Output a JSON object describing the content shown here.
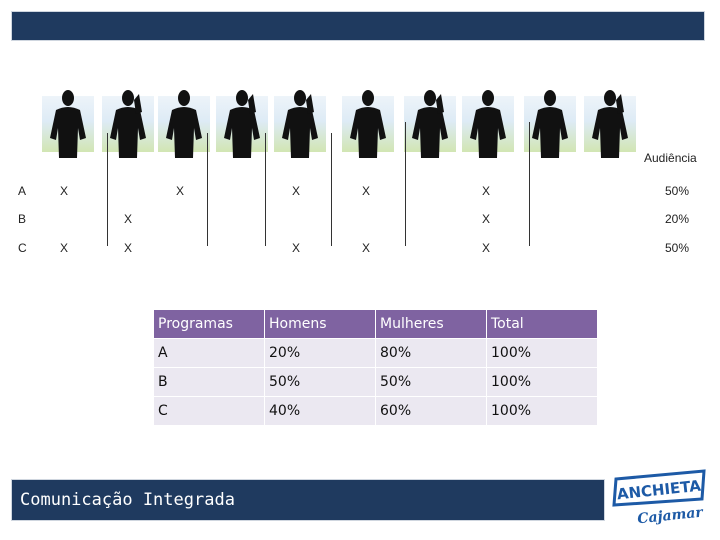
{
  "header": {
    "bar": ""
  },
  "audience_label": "Audiência",
  "rows": [
    {
      "label": "A",
      "marks": [
        "X",
        "X",
        "X",
        "X",
        "X"
      ],
      "pct": "50%"
    },
    {
      "label": "B",
      "marks": [
        "X",
        "X"
      ],
      "pct": "20%"
    },
    {
      "label": "C",
      "marks": [
        "X",
        "X",
        "X",
        "X",
        "X"
      ],
      "pct": "50%"
    }
  ],
  "table": {
    "headers": [
      "Programas",
      "Homens",
      "Mulheres",
      "Total"
    ],
    "rows": [
      [
        "A",
        "20%",
        "80%",
        "100%"
      ],
      [
        "B",
        "50%",
        "50%",
        "100%"
      ],
      [
        "C",
        "40%",
        "60%",
        "100%"
      ]
    ]
  },
  "footer": {
    "title": "Comunicação Integrada"
  },
  "logo": {
    "top": "ANCHIETA",
    "bottom": "Cajamar"
  },
  "colors": {
    "navy": "#1f3a5f",
    "header_purple": "#7f63a1",
    "cell_lavender": "#ebe8f1",
    "logo_blue": "#1d5aa6"
  }
}
